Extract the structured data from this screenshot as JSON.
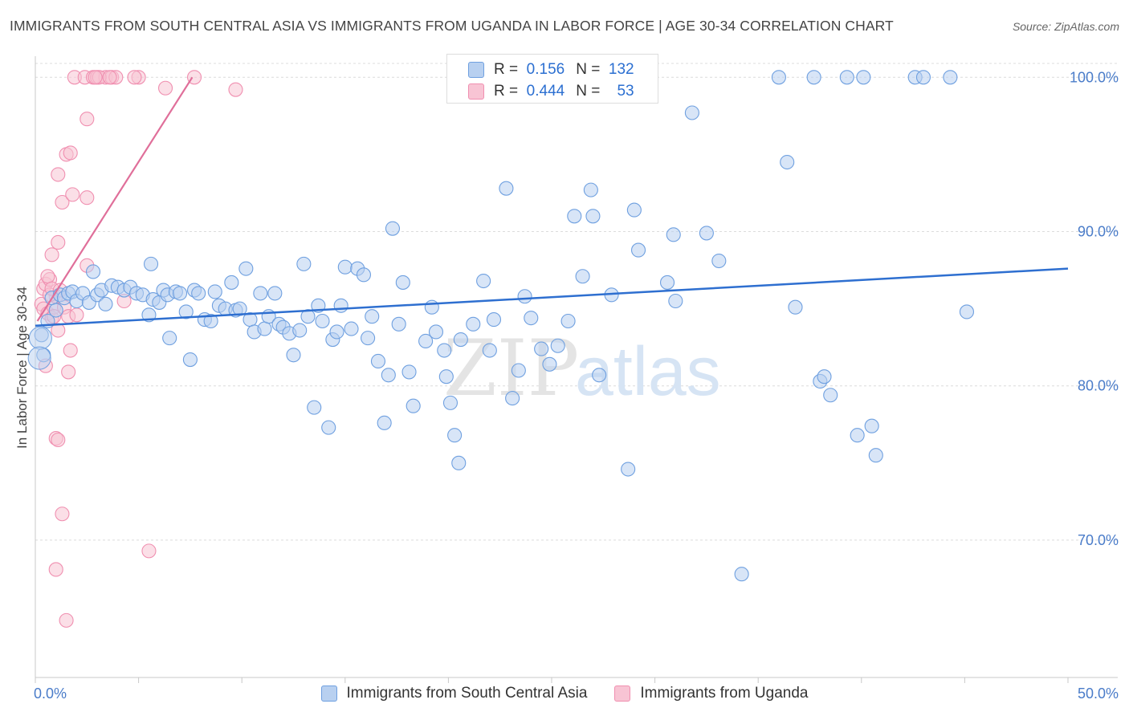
{
  "title": "IMMIGRANTS FROM SOUTH CENTRAL ASIA VS IMMIGRANTS FROM UGANDA IN LABOR FORCE | AGE 30-34 CORRELATION CHART",
  "source": "Source: ZipAtlas.com",
  "watermark": {
    "zip": "ZIP",
    "atlas": "atlas"
  },
  "legend": {
    "r_label": "R =",
    "n_label": "N =",
    "series": [
      {
        "r": "0.156",
        "n": "132",
        "color": "#6fa0e0",
        "fill": "#b8d0f0"
      },
      {
        "r": "0.444",
        "n": "53",
        "color": "#f08fb0",
        "fill": "#f8c4d4"
      }
    ]
  },
  "bottom_legend": [
    "Immigrants from South Central Asia",
    "Immigrants from Uganda"
  ],
  "chart_data": {
    "type": "scatter",
    "title": "IMMIGRANTS FROM SOUTH CENTRAL ASIA VS IMMIGRANTS FROM UGANDA IN LABOR FORCE | AGE 30-34 CORRELATION CHART",
    "xlabel": "",
    "ylabel": "In Labor Force | Age 30-34",
    "xlim": [
      0,
      50
    ],
    "ylim": [
      61.1,
      100.9
    ],
    "x_tick_labels": [
      "0.0%",
      "50.0%"
    ],
    "y_ticks": [
      70,
      80,
      90,
      100
    ],
    "y_tick_labels": [
      "70.0%",
      "80.0%",
      "90.0%",
      "100.0%"
    ],
    "grid": true,
    "series": [
      {
        "name": "Immigrants from South Central Asia",
        "color": "#6fa0e0",
        "fill": "#b8d0f0",
        "trend": {
          "x": [
            0.0,
            50.0
          ],
          "y": [
            83.9,
            87.6
          ]
        },
        "points": [
          [
            0.3,
            83.3
          ],
          [
            0.4,
            82.0
          ],
          [
            0.6,
            84.2
          ],
          [
            0.8,
            85.7
          ],
          [
            1.0,
            84.9
          ],
          [
            1.2,
            85.9
          ],
          [
            1.4,
            85.7
          ],
          [
            1.6,
            86.0
          ],
          [
            1.8,
            86.1
          ],
          [
            2.0,
            85.5
          ],
          [
            2.3,
            86.0
          ],
          [
            2.6,
            85.4
          ],
          [
            2.8,
            87.4
          ],
          [
            3.0,
            85.9
          ],
          [
            3.2,
            86.2
          ],
          [
            3.4,
            85.3
          ],
          [
            3.7,
            86.5
          ],
          [
            4.0,
            86.4
          ],
          [
            4.3,
            86.2
          ],
          [
            4.6,
            86.4
          ],
          [
            4.9,
            86.0
          ],
          [
            5.2,
            85.9
          ],
          [
            5.5,
            84.6
          ],
          [
            5.7,
            85.6
          ],
          [
            5.6,
            87.9
          ],
          [
            6.0,
            85.4
          ],
          [
            6.2,
            86.2
          ],
          [
            6.4,
            85.9
          ],
          [
            6.5,
            83.1
          ],
          [
            6.8,
            86.1
          ],
          [
            7.0,
            86.0
          ],
          [
            7.3,
            84.8
          ],
          [
            7.5,
            81.7
          ],
          [
            7.7,
            86.2
          ],
          [
            7.9,
            86.0
          ],
          [
            8.2,
            84.3
          ],
          [
            8.5,
            84.2
          ],
          [
            8.7,
            86.1
          ],
          [
            8.9,
            85.2
          ],
          [
            9.2,
            85.0
          ],
          [
            9.5,
            86.7
          ],
          [
            9.7,
            84.9
          ],
          [
            9.9,
            85.0
          ],
          [
            10.2,
            87.6
          ],
          [
            10.4,
            84.3
          ],
          [
            10.6,
            83.5
          ],
          [
            10.9,
            86.0
          ],
          [
            11.1,
            83.7
          ],
          [
            11.3,
            84.5
          ],
          [
            11.6,
            86.0
          ],
          [
            11.8,
            84.0
          ],
          [
            12.0,
            83.8
          ],
          [
            12.3,
            83.4
          ],
          [
            12.5,
            82.0
          ],
          [
            12.8,
            83.6
          ],
          [
            13.0,
            87.9
          ],
          [
            13.2,
            84.5
          ],
          [
            13.5,
            78.6
          ],
          [
            13.7,
            85.2
          ],
          [
            13.9,
            84.2
          ],
          [
            14.2,
            77.3
          ],
          [
            14.4,
            83.0
          ],
          [
            14.6,
            83.5
          ],
          [
            14.8,
            85.2
          ],
          [
            15.0,
            87.7
          ],
          [
            15.3,
            83.7
          ],
          [
            15.6,
            87.6
          ],
          [
            15.9,
            87.2
          ],
          [
            16.1,
            83.1
          ],
          [
            16.3,
            84.5
          ],
          [
            16.6,
            81.6
          ],
          [
            16.9,
            77.6
          ],
          [
            17.1,
            80.7
          ],
          [
            17.3,
            90.2
          ],
          [
            17.6,
            84.0
          ],
          [
            17.8,
            86.7
          ],
          [
            18.1,
            80.9
          ],
          [
            18.3,
            78.7
          ],
          [
            18.9,
            82.9
          ],
          [
            19.2,
            85.1
          ],
          [
            19.4,
            83.5
          ],
          [
            19.8,
            82.3
          ],
          [
            19.9,
            80.6
          ],
          [
            20.1,
            78.9
          ],
          [
            20.3,
            76.8
          ],
          [
            20.5,
            75.0
          ],
          [
            20.6,
            83.0
          ],
          [
            21.2,
            84.0
          ],
          [
            21.7,
            86.8
          ],
          [
            22.0,
            82.3
          ],
          [
            22.2,
            84.3
          ],
          [
            22.8,
            92.8
          ],
          [
            23.1,
            79.2
          ],
          [
            23.4,
            81.0
          ],
          [
            23.7,
            85.8
          ],
          [
            24.0,
            84.4
          ],
          [
            24.5,
            82.4
          ],
          [
            24.9,
            81.4
          ],
          [
            25.3,
            82.6
          ],
          [
            25.8,
            84.2
          ],
          [
            26.1,
            91.0
          ],
          [
            26.5,
            87.1
          ],
          [
            26.9,
            92.7
          ],
          [
            27.0,
            91.0
          ],
          [
            27.3,
            80.7
          ],
          [
            27.9,
            85.9
          ],
          [
            28.7,
            74.6
          ],
          [
            29.0,
            91.4
          ],
          [
            29.2,
            88.8
          ],
          [
            30.9,
            89.8
          ],
          [
            31.8,
            97.7
          ],
          [
            32.5,
            89.9
          ],
          [
            33.1,
            88.1
          ],
          [
            31.0,
            85.5
          ],
          [
            30.6,
            86.7
          ],
          [
            34.2,
            67.8
          ],
          [
            36.0,
            100.0
          ],
          [
            36.4,
            94.5
          ],
          [
            36.8,
            85.1
          ],
          [
            37.7,
            100.0
          ],
          [
            38.0,
            80.3
          ],
          [
            38.2,
            80.6
          ],
          [
            38.5,
            79.4
          ],
          [
            39.3,
            100.0
          ],
          [
            39.8,
            76.8
          ],
          [
            40.1,
            100.0
          ],
          [
            40.5,
            77.4
          ],
          [
            40.7,
            75.5
          ],
          [
            42.6,
            100.0
          ],
          [
            44.3,
            100.0
          ],
          [
            43.0,
            100.0
          ],
          [
            45.1,
            84.8
          ]
        ]
      },
      {
        "name": "Immigrants from Uganda",
        "color": "#f08fb0",
        "fill": "#f8c4d4",
        "trend": {
          "x": [
            0.1,
            7.6
          ],
          "y": [
            84.2,
            100.0
          ]
        },
        "points": [
          [
            0.3,
            85.3
          ],
          [
            0.4,
            86.3
          ],
          [
            0.4,
            85.0
          ],
          [
            0.5,
            86.6
          ],
          [
            0.6,
            84.7
          ],
          [
            0.7,
            86.9
          ],
          [
            0.8,
            84.4
          ],
          [
            0.9,
            85.1
          ],
          [
            1.0,
            85.8
          ],
          [
            1.1,
            83.6
          ],
          [
            0.5,
            81.3
          ],
          [
            0.6,
            87.1
          ],
          [
            0.7,
            85.9
          ],
          [
            0.8,
            86.3
          ],
          [
            0.9,
            84.5
          ],
          [
            1.2,
            86.2
          ],
          [
            1.4,
            85.1
          ],
          [
            1.6,
            84.5
          ],
          [
            0.8,
            88.5
          ],
          [
            1.1,
            89.3
          ],
          [
            1.3,
            91.9
          ],
          [
            1.1,
            93.7
          ],
          [
            1.5,
            95.0
          ],
          [
            1.7,
            95.1
          ],
          [
            1.8,
            92.4
          ],
          [
            2.5,
            92.2
          ],
          [
            2.5,
            87.8
          ],
          [
            2.0,
            84.6
          ],
          [
            1.9,
            100.0
          ],
          [
            2.4,
            100.0
          ],
          [
            2.8,
            100.0
          ],
          [
            3.0,
            100.0
          ],
          [
            3.4,
            100.0
          ],
          [
            3.7,
            100.0
          ],
          [
            3.9,
            100.0
          ],
          [
            5.0,
            100.0
          ],
          [
            6.3,
            99.3
          ],
          [
            7.7,
            100.0
          ],
          [
            9.7,
            99.2
          ],
          [
            2.5,
            97.3
          ],
          [
            1.7,
            82.3
          ],
          [
            1.6,
            80.9
          ],
          [
            1.0,
            76.6
          ],
          [
            1.1,
            76.5
          ],
          [
            1.3,
            71.7
          ],
          [
            1.0,
            68.1
          ],
          [
            1.5,
            64.8
          ],
          [
            5.5,
            69.3
          ],
          [
            3.1,
            100.0
          ],
          [
            4.8,
            100.0
          ],
          [
            3.6,
            100.0
          ],
          [
            4.3,
            85.5
          ],
          [
            2.9,
            100.0
          ]
        ]
      }
    ]
  }
}
